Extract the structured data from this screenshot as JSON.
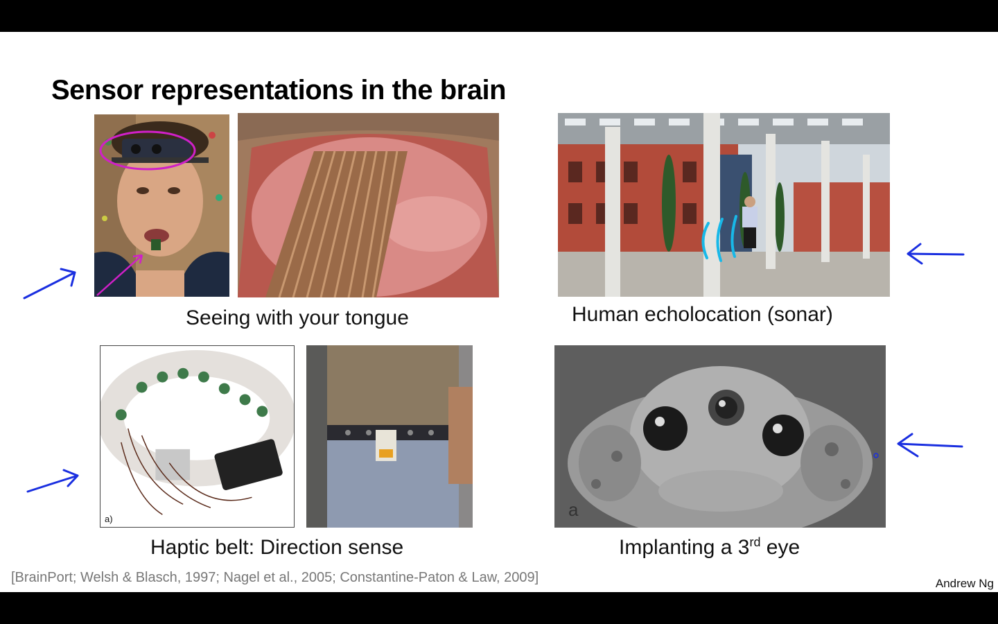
{
  "slide": {
    "title": "Sensor representations in the brain",
    "captions": {
      "tongue": "Seeing with your tongue",
      "echo": "Human echolocation (sonar)",
      "belt": "Haptic belt: Direction sense",
      "eye_prefix": "Implanting a 3",
      "eye_sup": "rd",
      "eye_suffix": " eye"
    },
    "panel_labels": {
      "belt": "a)",
      "frog": "a"
    },
    "reference": "[BrainPort; Welsh & Blasch, 1997; Nagel et al., 2005; Constantine-Paton & Law, 2009]",
    "author": "Andrew Ng"
  },
  "colors": {
    "annotation_blue": "#1a2fe0",
    "annotation_magenta": "#d020c8",
    "sonar_cyan": "#18b8e8",
    "background": "#ffffff",
    "letterbox": "#000000"
  }
}
